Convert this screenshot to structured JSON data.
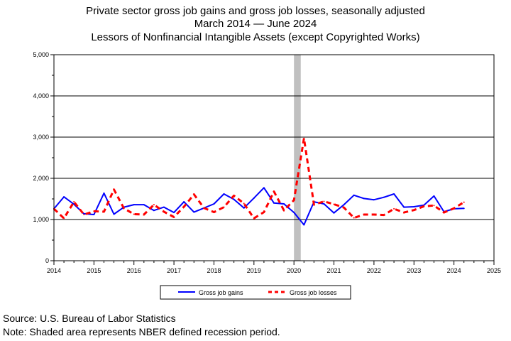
{
  "title_lines": [
    "Private sector gross job gains and gross job losses, seasonally adjusted",
    "March 2014 — June 2024",
    "Lessors of Nonfinancial Intangible Assets (except Copyrighted Works)"
  ],
  "notes": [
    "Source: U.S. Bureau of Labor Statistics",
    "Note: Shaded area represents NBER defined recession period."
  ],
  "chart_data": {
    "type": "line",
    "title": "Private sector gross job gains and gross job losses, seasonally adjusted",
    "subtitle": "March 2014 — June 2024",
    "subtitle2": "Lessors of Nonfinancial Intangible Assets (except Copyrighted Works)",
    "xlabel": "",
    "ylabel": "",
    "xlim": [
      2014,
      2025
    ],
    "ylim": [
      0,
      5000
    ],
    "x_ticks": [
      2014,
      2015,
      2016,
      2017,
      2018,
      2019,
      2020,
      2021,
      2022,
      2023,
      2024,
      2025
    ],
    "x_tick_labels": [
      "2014",
      "2015",
      "2016",
      "2017",
      "2018",
      "2019",
      "2020",
      "2021",
      "2022",
      "2023",
      "2024",
      "2025"
    ],
    "y_ticks": [
      0,
      1000,
      2000,
      3000,
      4000,
      5000
    ],
    "y_tick_labels": [
      "0",
      "1,000",
      "2,000",
      "3,000",
      "4,000",
      "5,000"
    ],
    "grid": "horizontal",
    "legend_position": "bottom-center",
    "recession_shading": {
      "start": 2020.0,
      "end": 2020.17,
      "color": "#c0c0c0"
    },
    "x": [
      2014.0,
      2014.25,
      2014.5,
      2014.75,
      2015.0,
      2015.25,
      2015.5,
      2015.75,
      2016.0,
      2016.25,
      2016.5,
      2016.75,
      2017.0,
      2017.25,
      2017.5,
      2017.75,
      2018.0,
      2018.25,
      2018.5,
      2018.75,
      2019.0,
      2019.25,
      2019.5,
      2019.75,
      2020.0,
      2020.25,
      2020.5,
      2020.75,
      2021.0,
      2021.25,
      2021.5,
      2021.75,
      2022.0,
      2022.25,
      2022.5,
      2022.75,
      2023.0,
      2023.25,
      2023.5,
      2023.75,
      2024.0,
      2024.25
    ],
    "series": [
      {
        "name": "Gross job gains",
        "color": "#0000ff",
        "style": "solid",
        "values": [
          1260,
          1550,
          1370,
          1140,
          1120,
          1640,
          1130,
          1300,
          1360,
          1360,
          1220,
          1300,
          1170,
          1430,
          1180,
          1280,
          1380,
          1620,
          1490,
          1280,
          1520,
          1770,
          1400,
          1380,
          1170,
          870,
          1430,
          1380,
          1160,
          1360,
          1590,
          1510,
          1480,
          1540,
          1620,
          1300,
          1310,
          1350,
          1570,
          1190,
          1260,
          1270
        ]
      },
      {
        "name": "Gross job losses",
        "color": "#ff0000",
        "style": "dashed",
        "values": [
          1260,
          1030,
          1430,
          1120,
          1200,
          1190,
          1730,
          1270,
          1130,
          1120,
          1360,
          1190,
          1060,
          1310,
          1610,
          1280,
          1180,
          1300,
          1580,
          1390,
          1030,
          1180,
          1680,
          1220,
          1470,
          2970,
          1360,
          1440,
          1370,
          1290,
          1040,
          1120,
          1120,
          1110,
          1260,
          1170,
          1230,
          1320,
          1340,
          1170,
          1270,
          1420
        ]
      }
    ]
  }
}
